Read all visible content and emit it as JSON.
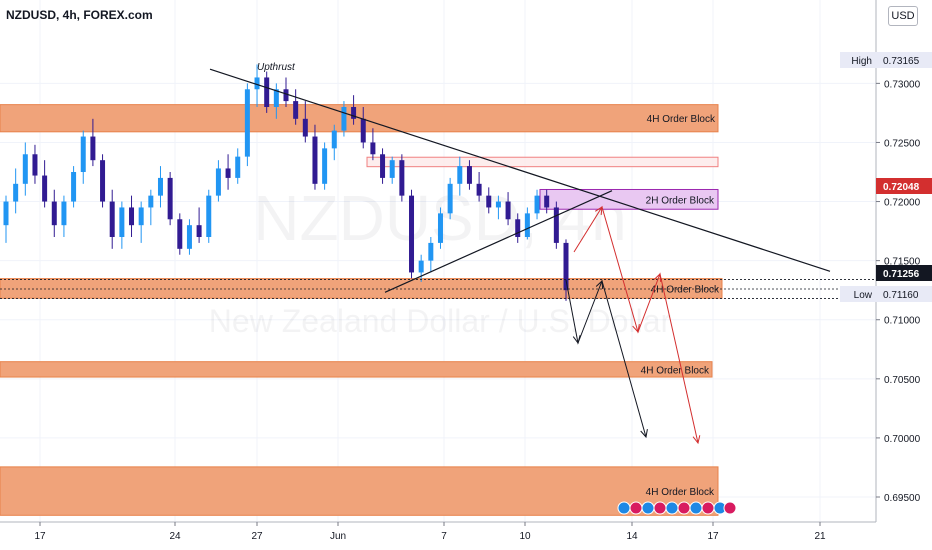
{
  "header": {
    "title": "NZDUSD, 4h, FOREX.com",
    "currency": "USD"
  },
  "watermark": {
    "symbol": "NZDUSD, 4h",
    "name": "New Zealand Dollar / U.S. Dollar"
  },
  "colors": {
    "bull": "#2196f3",
    "bear": "#311b92",
    "order_block_fill": "#f0a37a",
    "order_block_edge": "#e8824a",
    "two_h_block_fill": "#e9c8f2",
    "two_h_block_edge": "#9c27b0",
    "red_zone_edge": "#f08080",
    "arrow_red": "#d32f2f",
    "arrow_black": "#131722",
    "price_tag": "#d32f2f",
    "last_tag": "#131722"
  },
  "chart_data": {
    "type": "candlestick",
    "title": "NZDUSD, 4h, FOREX.com",
    "x_ticks": [
      "17",
      "24",
      "27",
      "Jun",
      "7",
      "10",
      "14",
      "17",
      "21"
    ],
    "y_ticks": [
      "0.73000",
      "0.72500",
      "0.72000",
      "0.71500",
      "0.71000",
      "0.70500",
      "0.70000",
      "0.69500"
    ],
    "ylim": [
      0.6928,
      0.7368
    ],
    "price_labels": {
      "high": {
        "label": "High",
        "value": "0.73165"
      },
      "current": {
        "value": "0.72048"
      },
      "last": {
        "value": "0.71256"
      },
      "low": {
        "label": "Low",
        "value": "0.71160"
      }
    },
    "zones": [
      {
        "label": "4H Order Block",
        "top": 0.7282,
        "bottom": 0.7259
      },
      {
        "label": "",
        "top": 0.72375,
        "bottom": 0.72295
      },
      {
        "label": "2H Order Block",
        "top": 0.72102,
        "bottom": 0.71935
      },
      {
        "label": "4H Order Block",
        "top": 0.71348,
        "bottom": 0.71182
      },
      {
        "label": "4H Order Block",
        "top": 0.70645,
        "bottom": 0.70515
      },
      {
        "label": "4H Order Block",
        "top": 0.69755,
        "bottom": 0.69345
      }
    ],
    "annotations": [
      "Upthrust"
    ],
    "candles": [
      [
        0.718,
        0.7205,
        0.7165,
        0.72
      ],
      [
        0.72,
        0.7228,
        0.719,
        0.7215
      ],
      [
        0.7215,
        0.725,
        0.7205,
        0.724
      ],
      [
        0.724,
        0.7248,
        0.7215,
        0.7222
      ],
      [
        0.7222,
        0.7235,
        0.7195,
        0.72
      ],
      [
        0.72,
        0.721,
        0.717,
        0.718
      ],
      [
        0.718,
        0.7205,
        0.717,
        0.72
      ],
      [
        0.72,
        0.723,
        0.7195,
        0.7225
      ],
      [
        0.7225,
        0.726,
        0.7215,
        0.7255
      ],
      [
        0.7255,
        0.727,
        0.723,
        0.7235
      ],
      [
        0.7235,
        0.724,
        0.7195,
        0.72
      ],
      [
        0.72,
        0.721,
        0.716,
        0.717
      ],
      [
        0.717,
        0.72,
        0.716,
        0.7195
      ],
      [
        0.7195,
        0.7205,
        0.717,
        0.718
      ],
      [
        0.718,
        0.72,
        0.7165,
        0.7195
      ],
      [
        0.7195,
        0.721,
        0.718,
        0.7205
      ],
      [
        0.7205,
        0.723,
        0.7195,
        0.722
      ],
      [
        0.722,
        0.7225,
        0.718,
        0.7185
      ],
      [
        0.7185,
        0.719,
        0.7155,
        0.716
      ],
      [
        0.716,
        0.7185,
        0.7155,
        0.718
      ],
      [
        0.718,
        0.7195,
        0.7165,
        0.717
      ],
      [
        0.717,
        0.721,
        0.7165,
        0.7205
      ],
      [
        0.7205,
        0.7235,
        0.72,
        0.7228
      ],
      [
        0.7228,
        0.724,
        0.721,
        0.722
      ],
      [
        0.722,
        0.7245,
        0.7215,
        0.7238
      ],
      [
        0.7238,
        0.73,
        0.723,
        0.7295
      ],
      [
        0.7295,
        0.7316,
        0.728,
        0.7305
      ],
      [
        0.7305,
        0.731,
        0.7275,
        0.728
      ],
      [
        0.728,
        0.73,
        0.727,
        0.7295
      ],
      [
        0.7295,
        0.7305,
        0.728,
        0.7285
      ],
      [
        0.7285,
        0.7295,
        0.7265,
        0.727
      ],
      [
        0.727,
        0.7285,
        0.725,
        0.7255
      ],
      [
        0.7255,
        0.7265,
        0.721,
        0.7215
      ],
      [
        0.7215,
        0.725,
        0.721,
        0.7245
      ],
      [
        0.7245,
        0.7265,
        0.7235,
        0.726
      ],
      [
        0.726,
        0.7285,
        0.7255,
        0.728
      ],
      [
        0.728,
        0.729,
        0.7265,
        0.727
      ],
      [
        0.727,
        0.728,
        0.7245,
        0.725
      ],
      [
        0.725,
        0.7262,
        0.7235,
        0.724
      ],
      [
        0.724,
        0.7245,
        0.7215,
        0.722
      ],
      [
        0.722,
        0.7238,
        0.7215,
        0.7235
      ],
      [
        0.7235,
        0.724,
        0.72,
        0.7205
      ],
      [
        0.7205,
        0.721,
        0.7135,
        0.714
      ],
      [
        0.714,
        0.7155,
        0.7132,
        0.715
      ],
      [
        0.715,
        0.717,
        0.714,
        0.7165
      ],
      [
        0.7165,
        0.7195,
        0.716,
        0.719
      ],
      [
        0.719,
        0.722,
        0.7185,
        0.7215
      ],
      [
        0.7215,
        0.7238,
        0.7205,
        0.723
      ],
      [
        0.723,
        0.7235,
        0.721,
        0.7215
      ],
      [
        0.7215,
        0.7225,
        0.72,
        0.7205
      ],
      [
        0.7205,
        0.7212,
        0.719,
        0.7195
      ],
      [
        0.7195,
        0.7205,
        0.7185,
        0.72
      ],
      [
        0.72,
        0.7208,
        0.718,
        0.7185
      ],
      [
        0.7185,
        0.719,
        0.7165,
        0.717
      ],
      [
        0.717,
        0.7195,
        0.7168,
        0.719
      ],
      [
        0.719,
        0.721,
        0.7185,
        0.7205
      ],
      [
        0.7205,
        0.721,
        0.719,
        0.7195
      ],
      [
        0.7195,
        0.72,
        0.716,
        0.7165
      ],
      [
        0.7165,
        0.7168,
        0.7116,
        0.7125
      ]
    ]
  }
}
